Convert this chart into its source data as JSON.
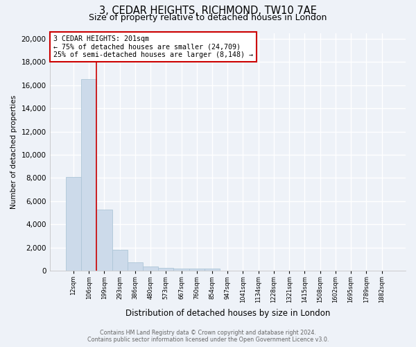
{
  "title_line1": "3, CEDAR HEIGHTS, RICHMOND, TW10 7AE",
  "title_line2": "Size of property relative to detached houses in London",
  "xlabel": "Distribution of detached houses by size in London",
  "ylabel": "Number of detached properties",
  "categories": [
    "12sqm",
    "106sqm",
    "199sqm",
    "293sqm",
    "386sqm",
    "480sqm",
    "573sqm",
    "667sqm",
    "760sqm",
    "854sqm",
    "947sqm",
    "1041sqm",
    "1134sqm",
    "1228sqm",
    "1321sqm",
    "1415sqm",
    "1508sqm",
    "1602sqm",
    "1695sqm",
    "1789sqm",
    "1882sqm"
  ],
  "values": [
    8100,
    16500,
    5300,
    1800,
    750,
    350,
    230,
    190,
    160,
    200,
    0,
    0,
    0,
    0,
    0,
    0,
    0,
    0,
    0,
    0,
    0
  ],
  "bar_color": "#ccdaea",
  "bar_edge_color": "#aec6d8",
  "property_line_color": "#cc0000",
  "annotation_text": "3 CEDAR HEIGHTS: 201sqm\n← 75% of detached houses are smaller (24,709)\n25% of semi-detached houses are larger (8,148) →",
  "annotation_box_color": "#ffffff",
  "annotation_box_edge": "#cc0000",
  "ylim": [
    0,
    20500
  ],
  "yticks": [
    0,
    2000,
    4000,
    6000,
    8000,
    10000,
    12000,
    14000,
    16000,
    18000,
    20000
  ],
  "footer1": "Contains HM Land Registry data © Crown copyright and database right 2024.",
  "footer2": "Contains public sector information licensed under the Open Government Licence v3.0.",
  "background_color": "#eef2f8",
  "plot_bg_color": "#eef2f8",
  "grid_color": "#ffffff",
  "title_fontsize": 10.5,
  "subtitle_fontsize": 9
}
